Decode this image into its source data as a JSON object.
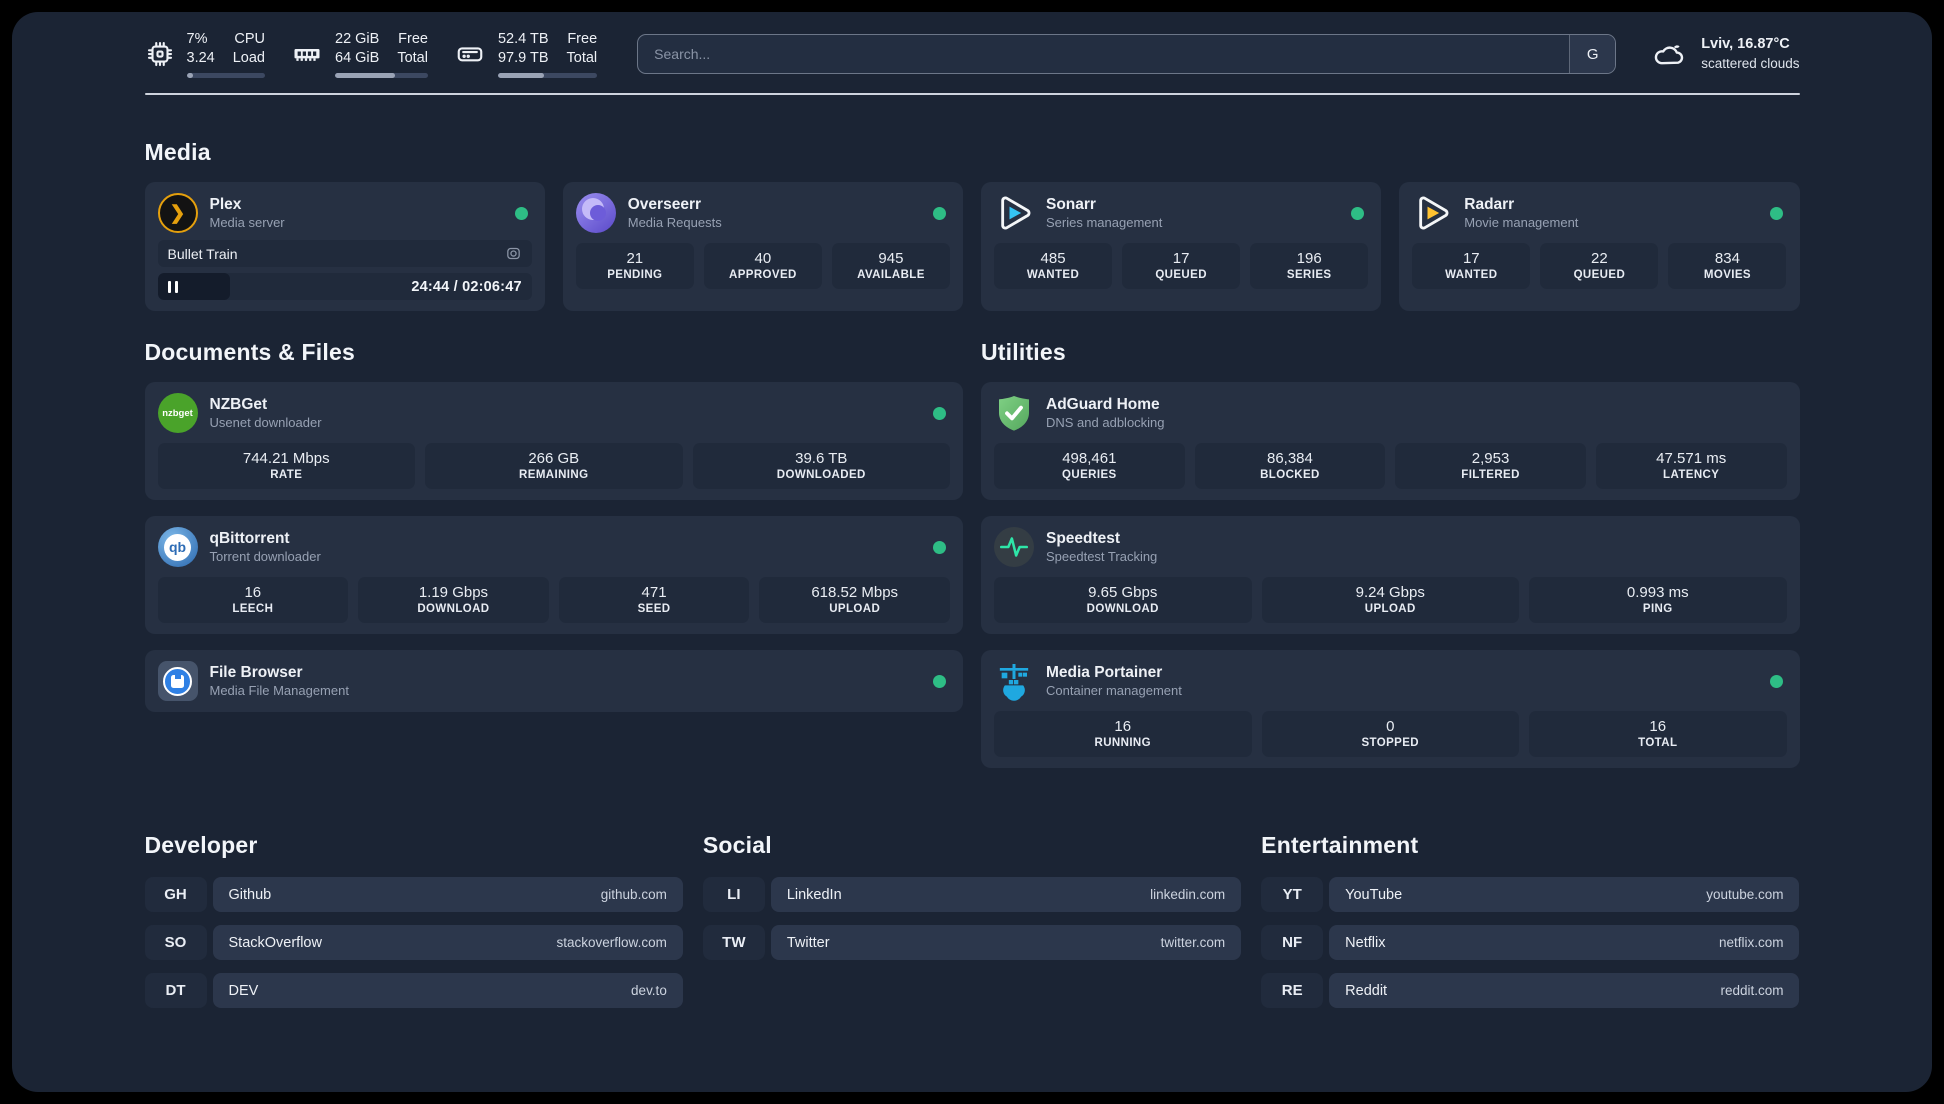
{
  "colors": {
    "status_online": "#2ebd85",
    "plex_amber": "#e5a00d",
    "sonarr_blue": "#35c5f4",
    "radarr_amber": "#ffc230",
    "nzbget_green": "#4aa32a",
    "qbittorrent_blue": "#2d6cb5",
    "adguard_green": "#68bc71",
    "portainer_blue": "#1fa8e0",
    "overseerr_purple": "#7a6ce0",
    "speedtest_green": "#2ee6a8"
  },
  "header": {
    "system_stats": [
      {
        "icon": "cpu-icon",
        "values": [
          "7%",
          "3.24"
        ],
        "labels": [
          "CPU",
          "Load"
        ],
        "progress_pct": 8
      },
      {
        "icon": "ram-icon",
        "values": [
          "22 GiB",
          "64 GiB"
        ],
        "labels": [
          "Free",
          "Total"
        ],
        "progress_pct": 65
      },
      {
        "icon": "disk-icon",
        "values": [
          "52.4 TB",
          "97.9 TB"
        ],
        "labels": [
          "Free",
          "Total"
        ],
        "progress_pct": 46
      }
    ],
    "search": {
      "placeholder": "Search...",
      "provider_label": "G"
    },
    "weather": {
      "location": "Lviv, 16.87°C",
      "condition": "scattered clouds"
    }
  },
  "media": {
    "title": "Media",
    "plex": {
      "name": "Plex",
      "subtitle": "Media server",
      "status": "online",
      "now_playing": {
        "title": "Bullet Train",
        "time_display": "24:44 / 02:06:47",
        "progress_pct": 19.5,
        "state": "paused"
      }
    },
    "overseerr": {
      "name": "Overseerr",
      "subtitle": "Media Requests",
      "status": "online",
      "stats": [
        {
          "value": "21",
          "label": "PENDING"
        },
        {
          "value": "40",
          "label": "APPROVED"
        },
        {
          "value": "945",
          "label": "AVAILABLE"
        }
      ]
    },
    "sonarr": {
      "name": "Sonarr",
      "subtitle": "Series management",
      "status": "online",
      "stats": [
        {
          "value": "485",
          "label": "WANTED"
        },
        {
          "value": "17",
          "label": "QUEUED"
        },
        {
          "value": "196",
          "label": "SERIES"
        }
      ]
    },
    "radarr": {
      "name": "Radarr",
      "subtitle": "Movie management",
      "status": "online",
      "stats": [
        {
          "value": "17",
          "label": "WANTED"
        },
        {
          "value": "22",
          "label": "QUEUED"
        },
        {
          "value": "834",
          "label": "MOVIES"
        }
      ]
    }
  },
  "documents": {
    "title": "Documents & Files",
    "nzbget": {
      "name": "NZBGet",
      "subtitle": "Usenet downloader",
      "status": "online",
      "logo_label": "nzbget",
      "stats": [
        {
          "value": "744.21 Mbps",
          "label": "RATE"
        },
        {
          "value": "266 GB",
          "label": "REMAINING"
        },
        {
          "value": "39.6 TB",
          "label": "DOWNLOADED"
        }
      ]
    },
    "qbittorrent": {
      "name": "qBittorrent",
      "subtitle": "Torrent downloader",
      "status": "online",
      "logo_label": "qb",
      "stats": [
        {
          "value": "16",
          "label": "LEECH"
        },
        {
          "value": "1.19 Gbps",
          "label": "DOWNLOAD"
        },
        {
          "value": "471",
          "label": "SEED"
        },
        {
          "value": "618.52 Mbps",
          "label": "UPLOAD"
        }
      ]
    },
    "filebrowser": {
      "name": "File Browser",
      "subtitle": "Media File Management",
      "status": "online"
    }
  },
  "utilities": {
    "title": "Utilities",
    "adguard": {
      "name": "AdGuard Home",
      "subtitle": "DNS and adblocking",
      "stats": [
        {
          "value": "498,461",
          "label": "QUERIES"
        },
        {
          "value": "86,384",
          "label": "BLOCKED"
        },
        {
          "value": "2,953",
          "label": "FILTERED"
        },
        {
          "value": "47.571 ms",
          "label": "LATENCY"
        }
      ]
    },
    "speedtest": {
      "name": "Speedtest",
      "subtitle": "Speedtest Tracking",
      "stats": [
        {
          "value": "9.65 Gbps",
          "label": "DOWNLOAD"
        },
        {
          "value": "9.24 Gbps",
          "label": "UPLOAD"
        },
        {
          "value": "0.993 ms",
          "label": "PING"
        }
      ]
    },
    "portainer": {
      "name": "Media Portainer",
      "subtitle": "Container management",
      "status": "online",
      "stats": [
        {
          "value": "16",
          "label": "RUNNING"
        },
        {
          "value": "0",
          "label": "STOPPED"
        },
        {
          "value": "16",
          "label": "TOTAL"
        }
      ]
    }
  },
  "links": {
    "developer": {
      "title": "Developer",
      "items": [
        {
          "abbr": "GH",
          "name": "Github",
          "url": "github.com"
        },
        {
          "abbr": "SO",
          "name": "StackOverflow",
          "url": "stackoverflow.com"
        },
        {
          "abbr": "DT",
          "name": "DEV",
          "url": "dev.to"
        }
      ]
    },
    "social": {
      "title": "Social",
      "items": [
        {
          "abbr": "LI",
          "name": "LinkedIn",
          "url": "linkedin.com"
        },
        {
          "abbr": "TW",
          "name": "Twitter",
          "url": "twitter.com"
        }
      ]
    },
    "entertainment": {
      "title": "Entertainment",
      "items": [
        {
          "abbr": "YT",
          "name": "YouTube",
          "url": "youtube.com"
        },
        {
          "abbr": "NF",
          "name": "Netflix",
          "url": "netflix.com"
        },
        {
          "abbr": "RE",
          "name": "Reddit",
          "url": "reddit.com"
        }
      ]
    }
  }
}
